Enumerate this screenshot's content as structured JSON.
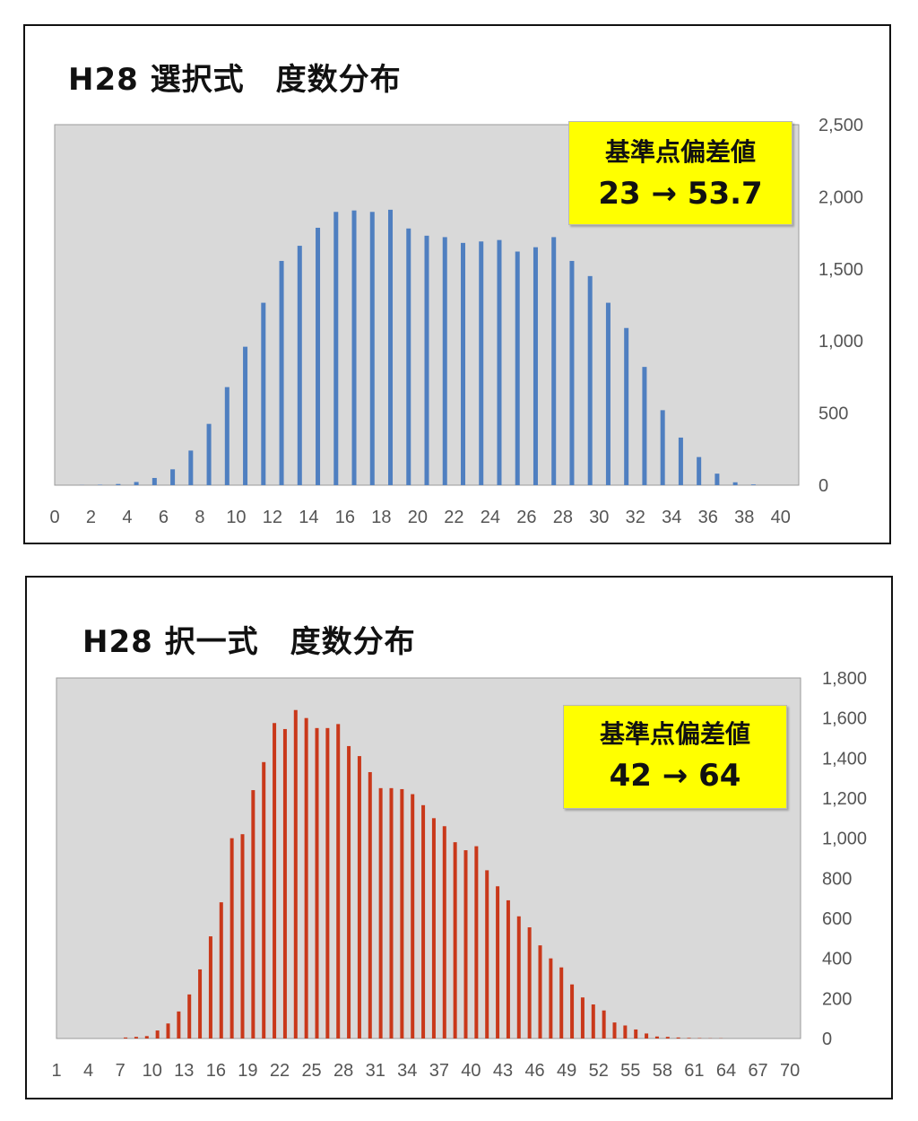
{
  "chart_data": [
    {
      "type": "bar",
      "title": "H28 選択式　度数分布",
      "callout": {
        "line1": "基準点偏差値",
        "line2": "23 → 53.7"
      },
      "x_start": 0,
      "x_end": 40,
      "x_tick_step": 2,
      "x_tick_labels": [
        "0",
        "2",
        "4",
        "6",
        "8",
        "10",
        "12",
        "14",
        "16",
        "18",
        "20",
        "22",
        "24",
        "26",
        "28",
        "30",
        "32",
        "34",
        "36",
        "38",
        "40"
      ],
      "y_tick_labels": [
        "0",
        "500",
        "1,000",
        "1,500",
        "2,000",
        "2,500"
      ],
      "ylim": [
        0,
        2500
      ],
      "y_tick_step": 500,
      "y_axis_side": "right",
      "grid": false,
      "bar_color": "#4f7fc0",
      "plot_background": "#d9d9d9",
      "x": [
        0,
        1,
        2,
        3,
        4,
        5,
        6,
        7,
        8,
        9,
        10,
        11,
        12,
        13,
        14,
        15,
        16,
        17,
        18,
        19,
        20,
        21,
        22,
        23,
        24,
        25,
        26,
        27,
        28,
        29,
        30,
        31,
        32,
        33,
        34,
        35,
        36,
        37,
        38,
        39
      ],
      "values": [
        0,
        1,
        3,
        8,
        22,
        50,
        110,
        240,
        425,
        680,
        960,
        1265,
        1555,
        1660,
        1785,
        1895,
        1905,
        1895,
        1910,
        1780,
        1730,
        1720,
        1680,
        1690,
        1700,
        1620,
        1650,
        1720,
        1555,
        1450,
        1265,
        1090,
        820,
        520,
        330,
        195,
        80,
        20,
        5,
        0
      ]
    },
    {
      "type": "bar",
      "title": "H28 択一式　度数分布",
      "callout": {
        "line1": "基準点偏差値",
        "line2": "42 → 64"
      },
      "x_start": 1,
      "x_end": 70,
      "x_tick_step": 3,
      "x_tick_labels": [
        "1",
        "4",
        "7",
        "10",
        "13",
        "16",
        "19",
        "22",
        "25",
        "28",
        "31",
        "34",
        "37",
        "40",
        "43",
        "46",
        "49",
        "52",
        "55",
        "58",
        "61",
        "64",
        "67",
        "70"
      ],
      "y_tick_labels": [
        "0",
        "200",
        "400",
        "600",
        "800",
        "1,000",
        "1,200",
        "1,400",
        "1,600",
        "1,800"
      ],
      "ylim": [
        0,
        1800
      ],
      "y_tick_step": 200,
      "y_axis_side": "right",
      "grid": false,
      "bar_color": "#c9381a",
      "plot_background": "#d9d9d9",
      "x": [
        1,
        2,
        3,
        4,
        5,
        6,
        7,
        8,
        9,
        10,
        11,
        12,
        13,
        14,
        15,
        16,
        17,
        18,
        19,
        20,
        21,
        22,
        23,
        24,
        25,
        26,
        27,
        28,
        29,
        30,
        31,
        32,
        33,
        34,
        35,
        36,
        37,
        38,
        39,
        40,
        41,
        42,
        43,
        44,
        45,
        46,
        47,
        48,
        49,
        50,
        51,
        52,
        53,
        54,
        55,
        56,
        57,
        58,
        59,
        60,
        61,
        62,
        63,
        64,
        65,
        66,
        67,
        68,
        69,
        70
      ],
      "values": [
        0,
        0,
        0,
        0,
        0,
        0,
        5,
        8,
        12,
        40,
        75,
        135,
        220,
        345,
        510,
        680,
        1000,
        1020,
        1240,
        1380,
        1575,
        1545,
        1640,
        1600,
        1550,
        1550,
        1570,
        1460,
        1410,
        1330,
        1250,
        1250,
        1245,
        1220,
        1165,
        1100,
        1060,
        980,
        940,
        960,
        840,
        760,
        690,
        610,
        555,
        465,
        400,
        355,
        270,
        205,
        170,
        140,
        80,
        65,
        45,
        25,
        10,
        8,
        5,
        3,
        2,
        1,
        1,
        0,
        0,
        0,
        0,
        0,
        0,
        0
      ]
    }
  ]
}
